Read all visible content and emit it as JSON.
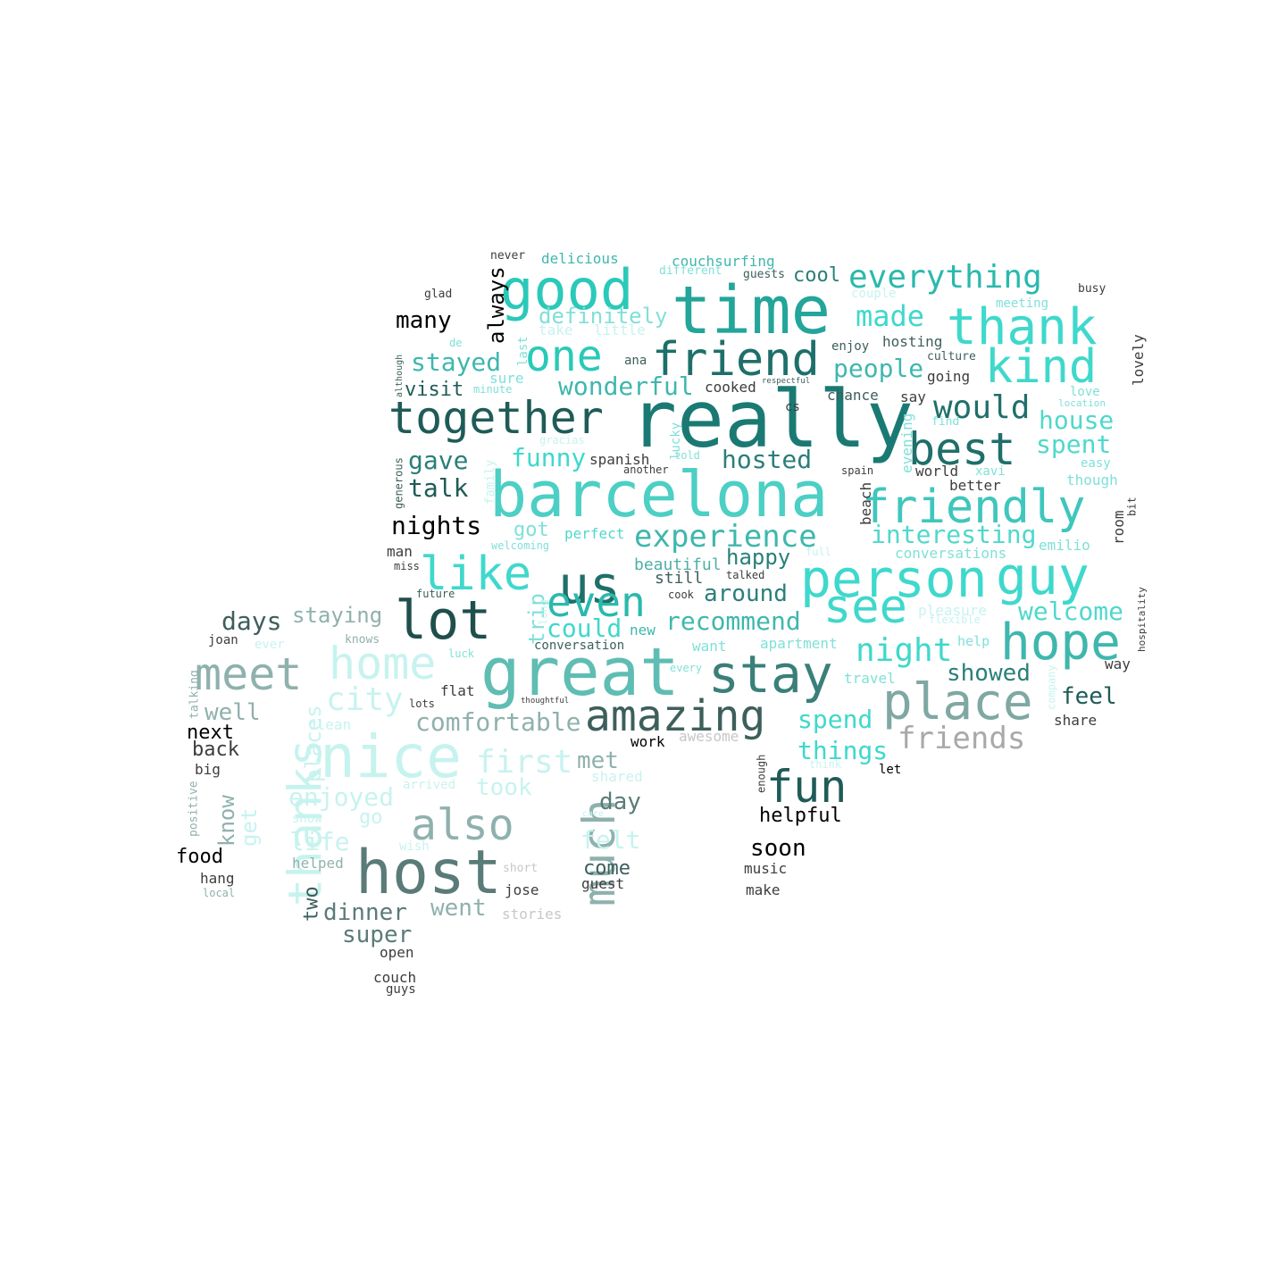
{
  "colors": {
    "background": "#ffffff",
    "palette": [
      "#40e0d0",
      "#20b2aa",
      "#2f4f4f",
      "#008080",
      "#5f9ea0",
      "#afeeee",
      "#000000",
      "#808080",
      "#a9a9a9"
    ]
  },
  "words": [
    {
      "text": "really",
      "color": "#1a7a73"
    },
    {
      "text": "time",
      "color": "#23a59a"
    },
    {
      "text": "barcelona",
      "color": "#4ccfc4"
    },
    {
      "text": "great",
      "color": "#5fbdb3"
    },
    {
      "text": "good",
      "color": "#2ac9b9"
    },
    {
      "text": "host",
      "color": "#5a7b78"
    },
    {
      "text": "nice",
      "color": "#c7f3ef"
    },
    {
      "text": "thank",
      "color": "#3fd8cc"
    },
    {
      "text": "stay",
      "color": "#3a7f7a"
    },
    {
      "text": "person",
      "color": "#3fd8cc"
    },
    {
      "text": "guy",
      "color": "#3fd8cc"
    },
    {
      "text": "friend",
      "color": "#1e6f6a"
    },
    {
      "text": "together",
      "color": "#1f5b57"
    },
    {
      "text": "friendly",
      "color": "#3fc6bd"
    },
    {
      "text": "us",
      "color": "#1f6f6a"
    },
    {
      "text": "place",
      "color": "#7fa8a3"
    },
    {
      "text": "lot",
      "color": "#1f4f4c"
    },
    {
      "text": "amazing",
      "color": "#3d5f5b"
    },
    {
      "text": "hope",
      "color": "#3fb7ad"
    },
    {
      "text": "meet",
      "color": "#8fb1ad"
    },
    {
      "text": "home",
      "color": "#c7f3ef"
    },
    {
      "text": "one",
      "color": "#2ac9b9"
    },
    {
      "text": "like",
      "color": "#3fd8cc"
    },
    {
      "text": "even",
      "color": "#2ab9ad"
    },
    {
      "text": "see",
      "color": "#3fd8cc"
    },
    {
      "text": "kind",
      "color": "#3fd8cc"
    },
    {
      "text": "best",
      "color": "#1f6f6a"
    },
    {
      "text": "much",
      "color": "#8fb1ad"
    },
    {
      "text": "also",
      "color": "#8fb1ad"
    },
    {
      "text": "thanks",
      "color": "#c7f3ef"
    },
    {
      "text": "fun",
      "color": "#1f5b57"
    },
    {
      "text": "everything",
      "color": "#2ab9ad"
    },
    {
      "text": "would",
      "color": "#1f6f6a"
    },
    {
      "text": "night",
      "color": "#3fd8cc"
    },
    {
      "text": "experience",
      "color": "#3fb7ad"
    },
    {
      "text": "friends",
      "color": "#a9a9a9"
    },
    {
      "text": "first",
      "color": "#c7f3ef"
    },
    {
      "text": "city",
      "color": "#c7f3ef"
    },
    {
      "text": "interesting",
      "color": "#4fd8cc"
    },
    {
      "text": "made",
      "color": "#3fd8cc"
    },
    {
      "text": "comfortable",
      "color": "#8fb1ad"
    },
    {
      "text": "recommend",
      "color": "#3fb7ad"
    },
    {
      "text": "people",
      "color": "#3fb7ad"
    },
    {
      "text": "house",
      "color": "#4fd8cc"
    },
    {
      "text": "spent",
      "color": "#4fd8cc"
    },
    {
      "text": "welcome",
      "color": "#4fd8cc"
    },
    {
      "text": "wonderful",
      "color": "#3fb7ad"
    },
    {
      "text": "stayed",
      "color": "#3fb7ad"
    },
    {
      "text": "hosted",
      "color": "#2a7f79"
    },
    {
      "text": "definitely",
      "color": "#7fe0d8"
    },
    {
      "text": "funny",
      "color": "#3fd8cc"
    },
    {
      "text": "could",
      "color": "#3fd8cc"
    },
    {
      "text": "around",
      "color": "#2a7f79"
    },
    {
      "text": "showed",
      "color": "#2a7f79"
    },
    {
      "text": "spend",
      "color": "#3fd8cc"
    },
    {
      "text": "things",
      "color": "#3fd8cc"
    },
    {
      "text": "enjoyed",
      "color": "#c7f3ef"
    },
    {
      "text": "days",
      "color": "#3d5f5b"
    },
    {
      "text": "staying",
      "color": "#8fb1ad"
    },
    {
      "text": "nights",
      "color": "#000000"
    },
    {
      "text": "talk",
      "color": "#1f5b57"
    },
    {
      "text": "gave",
      "color": "#2a7f79"
    },
    {
      "text": "many",
      "color": "#000000"
    },
    {
      "text": "always",
      "color": "#000000"
    },
    {
      "text": "visit",
      "color": "#1f5b57"
    },
    {
      "text": "well",
      "color": "#8fb1ad"
    },
    {
      "text": "life",
      "color": "#c7f3ef"
    },
    {
      "text": "dinner",
      "color": "#5a7b78"
    },
    {
      "text": "went",
      "color": "#8fb1ad"
    },
    {
      "text": "super",
      "color": "#5a7b78"
    },
    {
      "text": "took",
      "color": "#c7f3ef"
    },
    {
      "text": "day",
      "color": "#5a7b78"
    },
    {
      "text": "felt",
      "color": "#c7f3ef"
    },
    {
      "text": "met",
      "color": "#8fb1ad"
    },
    {
      "text": "feel",
      "color": "#1f5b57"
    },
    {
      "text": "soon",
      "color": "#000000"
    },
    {
      "text": "helpful",
      "color": "#000000"
    },
    {
      "text": "happy",
      "color": "#2a7f79"
    },
    {
      "text": "got",
      "color": "#7fe0d8"
    },
    {
      "text": "cool",
      "color": "#2a7f79"
    },
    {
      "text": "trip",
      "color": "#7fe0d8"
    },
    {
      "text": "places",
      "color": "#c7f3ef"
    },
    {
      "text": "know",
      "color": "#8fb1ad"
    },
    {
      "text": "get",
      "color": "#c7f3ef"
    },
    {
      "text": "two",
      "color": "#3d5f5b"
    },
    {
      "text": "next",
      "color": "#000000"
    },
    {
      "text": "back",
      "color": "#3d3d3d"
    },
    {
      "text": "food",
      "color": "#000000"
    },
    {
      "text": "come",
      "color": "#3d5f5b"
    },
    {
      "text": "beautiful",
      "color": "#4fb0a7"
    },
    {
      "text": "still",
      "color": "#3d5f5b"
    },
    {
      "text": "go",
      "color": "#c7f3ef"
    },
    {
      "text": "couchsurfing",
      "color": "#3fb7ad"
    },
    {
      "text": "delicious",
      "color": "#3fb7ad"
    },
    {
      "text": "perfect",
      "color": "#4fd8cc"
    },
    {
      "text": "flat",
      "color": "#3d3d3d"
    },
    {
      "text": "conversations",
      "color": "#7fe0d8"
    },
    {
      "text": "emilio",
      "color": "#7fe0d8"
    },
    {
      "text": "hosting",
      "color": "#3d5f5b"
    },
    {
      "text": "going",
      "color": "#3d3d3d"
    },
    {
      "text": "say",
      "color": "#3d3d3d"
    },
    {
      "text": "chance",
      "color": "#3d5f5b"
    },
    {
      "text": "cooked",
      "color": "#3d3d3d"
    },
    {
      "text": "spanish",
      "color": "#3d3d3d"
    },
    {
      "text": "world",
      "color": "#3d3d3d"
    },
    {
      "text": "better",
      "color": "#3d3d3d"
    },
    {
      "text": "beach",
      "color": "#3d3d3d"
    },
    {
      "text": "room",
      "color": "#3d3d3d"
    },
    {
      "text": "evening",
      "color": "#7fe0d8"
    },
    {
      "text": "lovely",
      "color": "#3d3d3d"
    },
    {
      "text": "busy",
      "color": "#3d3d3d"
    },
    {
      "text": "glad",
      "color": "#3d3d3d"
    },
    {
      "text": "never",
      "color": "#3d3d3d"
    },
    {
      "text": "different",
      "color": "#7fe0d8"
    },
    {
      "text": "guests",
      "color": "#3d5f5b"
    },
    {
      "text": "couple",
      "color": "#c7f3ef"
    },
    {
      "text": "meeting",
      "color": "#7fe0d8"
    },
    {
      "text": "take",
      "color": "#c7f3ef"
    },
    {
      "text": "little",
      "color": "#c7f3ef"
    },
    {
      "text": "enjoy",
      "color": "#3d5f5b"
    },
    {
      "text": "culture",
      "color": "#3d5f5b"
    },
    {
      "text": "ana",
      "color": "#3d5f5b"
    },
    {
      "text": "sure",
      "color": "#7fe0d8"
    },
    {
      "text": "last",
      "color": "#7fe0d8"
    },
    {
      "text": "de",
      "color": "#7fe0d8"
    },
    {
      "text": "minute",
      "color": "#7fe0d8"
    },
    {
      "text": "respectful",
      "color": "#3d5f5b"
    },
    {
      "text": "cs",
      "color": "#3d3d3d"
    },
    {
      "text": "love",
      "color": "#7fe0d8"
    },
    {
      "text": "location",
      "color": "#7fe0d8"
    },
    {
      "text": "find",
      "color": "#7fe0d8"
    },
    {
      "text": "easy",
      "color": "#7fe0d8"
    },
    {
      "text": "xavi",
      "color": "#7fe0d8"
    },
    {
      "text": "though",
      "color": "#7fe0d8"
    },
    {
      "text": "bit",
      "color": "#3d3d3d"
    },
    {
      "text": "gracias",
      "color": "#c7f3ef"
    },
    {
      "text": "lucky",
      "color": "#7fe0d8"
    },
    {
      "text": "told",
      "color": "#7fe0d8"
    },
    {
      "text": "another",
      "color": "#3d3d3d"
    },
    {
      "text": "spain",
      "color": "#3d3d3d"
    },
    {
      "text": "family",
      "color": "#c7f3ef"
    },
    {
      "text": "generous",
      "color": "#3d5f5b"
    },
    {
      "text": "although",
      "color": "#3d5f5b"
    },
    {
      "text": "welcoming",
      "color": "#7fe0d8"
    },
    {
      "text": "man",
      "color": "#3d3d3d"
    },
    {
      "text": "miss",
      "color": "#3d3d3d"
    },
    {
      "text": "talked",
      "color": "#3d3d3d"
    },
    {
      "text": "full",
      "color": "#c7f3ef"
    },
    {
      "text": "future",
      "color": "#3d5f5b"
    },
    {
      "text": "long",
      "color": "#c7f3ef"
    },
    {
      "text": "cook",
      "color": "#3d3d3d"
    },
    {
      "text": "new",
      "color": "#3fb7ad"
    },
    {
      "text": "pleasure",
      "color": "#c7f3ef"
    },
    {
      "text": "flexible",
      "color": "#c7f3ef"
    },
    {
      "text": "hospitality",
      "color": "#3d3d3d"
    },
    {
      "text": "joan",
      "color": "#3d3d3d"
    },
    {
      "text": "ever",
      "color": "#c7f3ef"
    },
    {
      "text": "knows",
      "color": "#8fb1ad"
    },
    {
      "text": "conversation",
      "color": "#3d5f5b"
    },
    {
      "text": "want",
      "color": "#7fe0d8"
    },
    {
      "text": "apartment",
      "color": "#7fe0d8"
    },
    {
      "text": "help",
      "color": "#7fe0d8"
    },
    {
      "text": "luck",
      "color": "#7fe0d8"
    },
    {
      "text": "every",
      "color": "#7fe0d8"
    },
    {
      "text": "way",
      "color": "#3d3d3d"
    },
    {
      "text": "company",
      "color": "#c7f3ef"
    },
    {
      "text": "travel",
      "color": "#7fe0d8"
    },
    {
      "text": "talking",
      "color": "#8fb1ad"
    },
    {
      "text": "lots",
      "color": "#3d3d3d"
    },
    {
      "text": "thoughtful",
      "color": "#3d3d3d"
    },
    {
      "text": "clean",
      "color": "#c7f3ef"
    },
    {
      "text": "share",
      "color": "#3d3d3d"
    },
    {
      "text": "awesome",
      "color": "#c7c7c7"
    },
    {
      "text": "work",
      "color": "#000000"
    },
    {
      "text": "enough",
      "color": "#3d3d3d"
    },
    {
      "text": "think",
      "color": "#c7f3ef"
    },
    {
      "text": "let",
      "color": "#000000"
    },
    {
      "text": "big",
      "color": "#3d3d3d"
    },
    {
      "text": "positive",
      "color": "#8fb1ad"
    },
    {
      "text": "shared",
      "color": "#c7f3ef"
    },
    {
      "text": "arrived",
      "color": "#c7f3ef"
    },
    {
      "text": "show",
      "color": "#c7f3ef"
    },
    {
      "text": "care",
      "color": "#c7f3ef"
    },
    {
      "text": "wish",
      "color": "#c7f3ef"
    },
    {
      "text": "helped",
      "color": "#8fb1ad"
    },
    {
      "text": "hang",
      "color": "#3d3d3d"
    },
    {
      "text": "local",
      "color": "#8fb1ad"
    },
    {
      "text": "short",
      "color": "#c7c7c7"
    },
    {
      "text": "jose",
      "color": "#3d3d3d"
    },
    {
      "text": "guest",
      "color": "#3d3d3d"
    },
    {
      "text": "stories",
      "color": "#c7c7c7"
    },
    {
      "text": "open",
      "color": "#3d3d3d"
    },
    {
      "text": "couch",
      "color": "#3d3d3d"
    },
    {
      "text": "guys",
      "color": "#3d3d3d"
    },
    {
      "text": "music",
      "color": "#3d3d3d"
    },
    {
      "text": "make",
      "color": "#3d3d3d"
    }
  ]
}
